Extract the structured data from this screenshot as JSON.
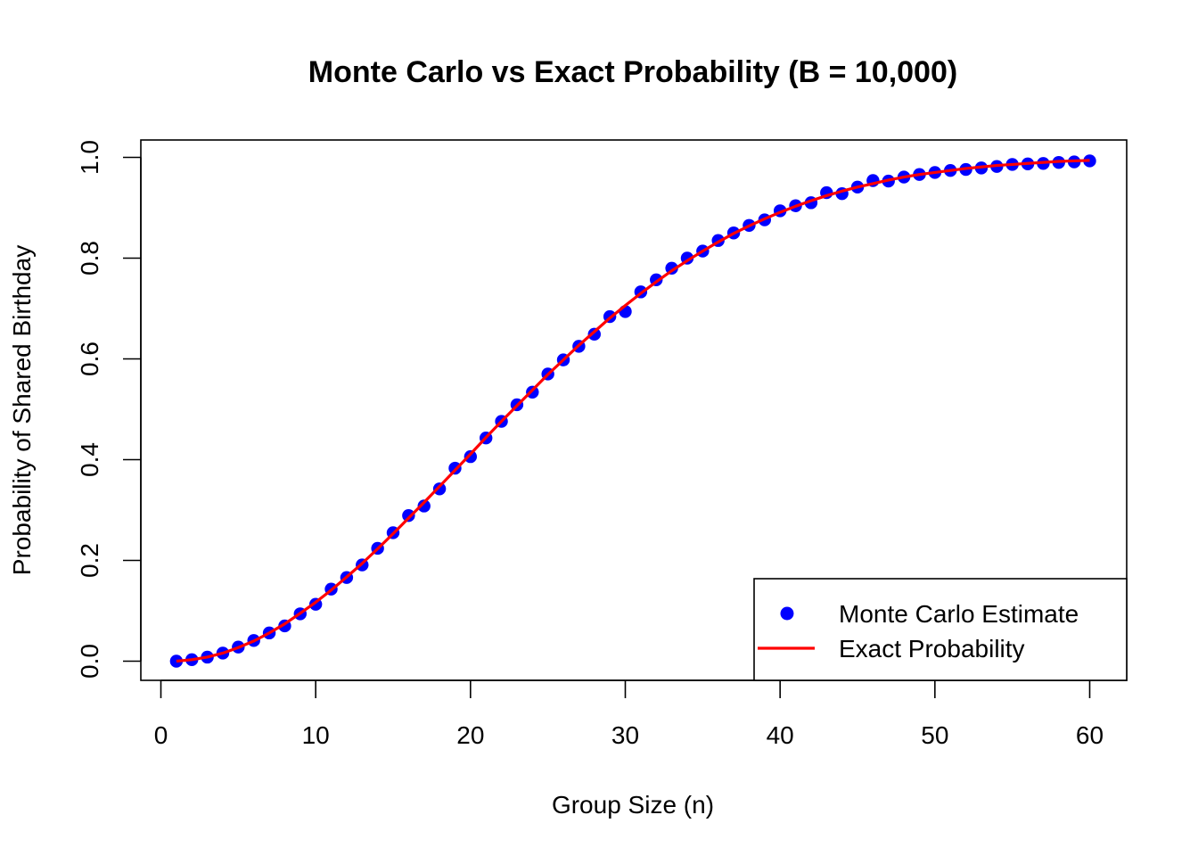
{
  "chart_data": {
    "type": "scatter",
    "title": "Monte Carlo vs Exact Probability (B = 10,000)",
    "xlabel": "Group Size (n)",
    "ylabel": "Probability of Shared Birthday",
    "xlim": [
      0,
      60
    ],
    "ylim": [
      0,
      1
    ],
    "x_ticks": [
      "0",
      "10",
      "20",
      "30",
      "40",
      "50",
      "60"
    ],
    "y_ticks": [
      "0.0",
      "0.2",
      "0.4",
      "0.6",
      "0.8",
      "1.0"
    ],
    "grid": false,
    "legend_position": "bottom-right",
    "x": [
      1,
      2,
      3,
      4,
      5,
      6,
      7,
      8,
      9,
      10,
      11,
      12,
      13,
      14,
      15,
      16,
      17,
      18,
      19,
      20,
      21,
      22,
      23,
      24,
      25,
      26,
      27,
      28,
      29,
      30,
      31,
      32,
      33,
      34,
      35,
      36,
      37,
      38,
      39,
      40,
      41,
      42,
      43,
      44,
      45,
      46,
      47,
      48,
      49,
      50,
      51,
      52,
      53,
      54,
      55,
      56,
      57,
      58,
      59,
      60
    ],
    "series": [
      {
        "name": "Monte Carlo Estimate",
        "kind": "points",
        "color": "#0000ff",
        "values": [
          0.0,
          0.003,
          0.008,
          0.016,
          0.028,
          0.041,
          0.056,
          0.07,
          0.094,
          0.113,
          0.143,
          0.166,
          0.191,
          0.224,
          0.255,
          0.289,
          0.308,
          0.342,
          0.383,
          0.406,
          0.443,
          0.476,
          0.509,
          0.534,
          0.57,
          0.598,
          0.625,
          0.649,
          0.684,
          0.694,
          0.733,
          0.757,
          0.78,
          0.8,
          0.814,
          0.835,
          0.85,
          0.865,
          0.876,
          0.894,
          0.904,
          0.91,
          0.93,
          0.928,
          0.941,
          0.954,
          0.953,
          0.961,
          0.966,
          0.97,
          0.974,
          0.976,
          0.979,
          0.982,
          0.986,
          0.987,
          0.988,
          0.99,
          0.991,
          0.993
        ]
      },
      {
        "name": "Exact Probability",
        "kind": "line",
        "color": "#ff0000",
        "values": [
          0.0,
          0.003,
          0.008,
          0.016,
          0.027,
          0.04,
          0.056,
          0.074,
          0.095,
          0.117,
          0.141,
          0.167,
          0.194,
          0.223,
          0.253,
          0.284,
          0.315,
          0.347,
          0.379,
          0.411,
          0.444,
          0.476,
          0.507,
          0.538,
          0.569,
          0.598,
          0.627,
          0.654,
          0.681,
          0.706,
          0.73,
          0.753,
          0.775,
          0.795,
          0.814,
          0.832,
          0.849,
          0.864,
          0.878,
          0.891,
          0.903,
          0.914,
          0.924,
          0.933,
          0.941,
          0.948,
          0.955,
          0.961,
          0.966,
          0.97,
          0.974,
          0.978,
          0.981,
          0.984,
          0.986,
          0.988,
          0.99,
          0.992,
          0.993,
          0.994
        ]
      }
    ]
  }
}
